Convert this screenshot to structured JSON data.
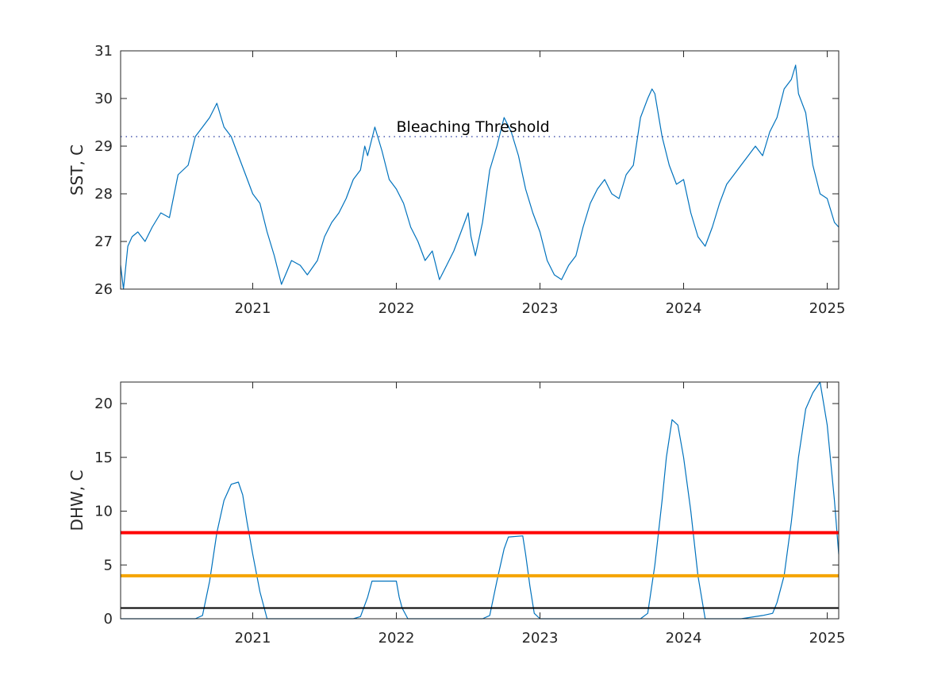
{
  "colors": {
    "series": "#0072bd",
    "threshold_dotted": "#4a5ab0",
    "dhw_red": "#ff0000",
    "dhw_orange": "#f5a400",
    "dhw_black": "#000000",
    "axis": "#262626"
  },
  "chart_data": [
    {
      "type": "line",
      "title": "",
      "xlabel": "",
      "ylabel": "SST, C",
      "xlim": [
        2020.08,
        2025.08
      ],
      "ylim": [
        26,
        31
      ],
      "yticks": [
        "26",
        "27",
        "28",
        "29",
        "30",
        "31"
      ],
      "xticks": [
        "2021",
        "2022",
        "2023",
        "2024",
        "2025"
      ],
      "grid": false,
      "box": true,
      "annotation": "Bleaching Threshold",
      "threshold": 29.2,
      "series": [
        {
          "x": [
            2020.08,
            2020.1,
            2020.13,
            2020.16,
            2020.2,
            2020.25,
            2020.3,
            2020.36,
            2020.42,
            2020.48,
            2020.55,
            2020.6,
            2020.65,
            2020.7,
            2020.75,
            2020.8,
            2020.85,
            2020.9,
            2020.95,
            2021.0,
            2021.05,
            2021.1,
            2021.15,
            2021.2,
            2021.27,
            2021.33,
            2021.38,
            2021.45,
            2021.5,
            2021.55,
            2021.6,
            2021.65,
            2021.7,
            2021.75,
            2021.78,
            2021.8,
            2021.85,
            2021.9,
            2021.95,
            2022.0,
            2022.05,
            2022.1,
            2022.15,
            2022.2,
            2022.25,
            2022.3,
            2022.35,
            2022.4,
            2022.45,
            2022.5,
            2022.52,
            2022.55,
            2022.6,
            2022.65,
            2022.7,
            2022.75,
            2022.8,
            2022.85,
            2022.9,
            2022.95,
            2023.0,
            2023.05,
            2023.1,
            2023.15,
            2023.2,
            2023.25,
            2023.3,
            2023.35,
            2023.4,
            2023.45,
            2023.5,
            2023.55,
            2023.6,
            2023.65,
            2023.7,
            2023.75,
            2023.78,
            2023.8,
            2023.85,
            2023.9,
            2023.95,
            2024.0,
            2024.05,
            2024.1,
            2024.15,
            2024.2,
            2024.25,
            2024.3,
            2024.35,
            2024.4,
            2024.45,
            2024.5,
            2024.55,
            2024.6,
            2024.65,
            2024.7,
            2024.75,
            2024.78,
            2024.8,
            2024.85,
            2024.9,
            2024.95,
            2025.0,
            2025.05,
            2025.08
          ],
          "y": [
            26.5,
            26.0,
            26.9,
            27.1,
            27.2,
            27.0,
            27.3,
            27.6,
            27.5,
            28.4,
            28.6,
            29.2,
            29.4,
            29.6,
            29.9,
            29.4,
            29.2,
            28.8,
            28.4,
            28.0,
            27.8,
            27.2,
            26.7,
            26.1,
            26.6,
            26.5,
            26.3,
            26.6,
            27.1,
            27.4,
            27.6,
            27.9,
            28.3,
            28.5,
            29.0,
            28.8,
            29.4,
            28.9,
            28.3,
            28.1,
            27.8,
            27.3,
            27.0,
            26.6,
            26.8,
            26.2,
            26.5,
            26.8,
            27.2,
            27.6,
            27.1,
            26.7,
            27.4,
            28.5,
            29.0,
            29.6,
            29.3,
            28.8,
            28.1,
            27.6,
            27.2,
            26.6,
            26.3,
            26.2,
            26.5,
            26.7,
            27.3,
            27.8,
            28.1,
            28.3,
            28.0,
            27.9,
            28.4,
            28.6,
            29.6,
            30.0,
            30.2,
            30.1,
            29.2,
            28.6,
            28.2,
            28.3,
            27.6,
            27.1,
            26.9,
            27.3,
            27.8,
            28.2,
            28.4,
            28.6,
            28.8,
            29.0,
            28.8,
            29.3,
            29.6,
            30.2,
            30.4,
            30.7,
            30.1,
            29.7,
            28.6,
            28.0,
            27.9,
            27.4,
            27.3
          ]
        }
      ]
    },
    {
      "type": "line",
      "title": "",
      "xlabel": "",
      "ylabel": "DHW, C",
      "xlim": [
        2020.08,
        2025.08
      ],
      "ylim": [
        0,
        22
      ],
      "yticks": [
        "0",
        "5",
        "10",
        "15",
        "20"
      ],
      "xticks": [
        "2021",
        "2022",
        "2023",
        "2024",
        "2025"
      ],
      "grid": false,
      "box": true,
      "reference_lines": [
        8,
        4,
        1
      ],
      "series": [
        {
          "x": [
            2020.08,
            2020.6,
            2020.65,
            2020.7,
            2020.75,
            2020.8,
            2020.85,
            2020.9,
            2020.93,
            2020.96,
            2021.0,
            2021.05,
            2021.1,
            2021.2,
            2021.7,
            2021.75,
            2021.8,
            2021.83,
            2022.0,
            2022.02,
            2022.04,
            2022.08,
            2022.6,
            2022.65,
            2022.7,
            2022.75,
            2022.78,
            2022.88,
            2022.9,
            2022.93,
            2022.96,
            2023.0,
            2023.7,
            2023.75,
            2023.8,
            2023.85,
            2023.88,
            2023.92,
            2023.96,
            2024.0,
            2024.05,
            2024.1,
            2024.15,
            2024.4,
            2024.55,
            2024.62,
            2024.65,
            2024.7,
            2024.75,
            2024.8,
            2024.85,
            2024.9,
            2024.95,
            2025.0,
            2025.05,
            2025.08
          ],
          "y": [
            0,
            0,
            0.3,
            3.5,
            8.0,
            11.0,
            12.5,
            12.7,
            11.5,
            9.0,
            6.0,
            2.5,
            0,
            0,
            0,
            0.2,
            2.0,
            3.5,
            3.5,
            2.0,
            1.0,
            0,
            0,
            0.3,
            3.5,
            6.5,
            7.6,
            7.7,
            6.0,
            3.0,
            0.5,
            0,
            0,
            0.5,
            5.0,
            11.0,
            15.0,
            18.5,
            18.0,
            15.0,
            10.0,
            4.0,
            0,
            0,
            0.3,
            0.5,
            1.5,
            4.0,
            9.0,
            15.0,
            19.5,
            21.0,
            22.0,
            18.0,
            11.0,
            6.0
          ]
        }
      ]
    }
  ]
}
